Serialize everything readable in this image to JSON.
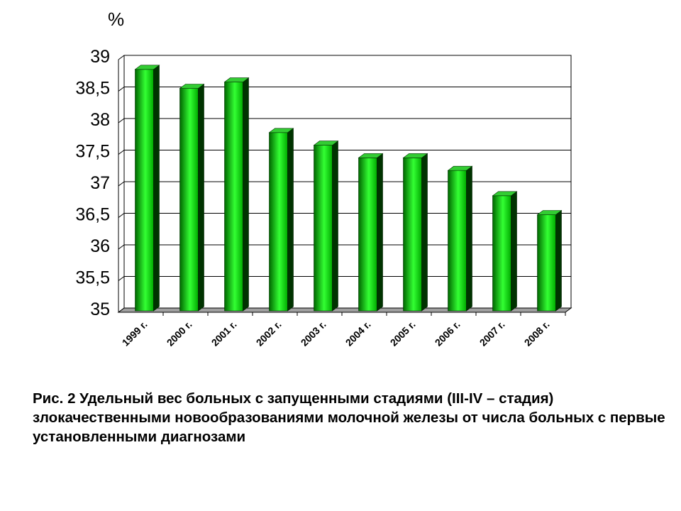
{
  "chart_data": {
    "type": "bar",
    "categories": [
      "1999 г.",
      "2000 г.",
      "2001 г.",
      "2002 г.",
      "2003 г.",
      "2004 г.",
      "2005 г.",
      "2006 г.",
      "2007 г.",
      "2008 г."
    ],
    "values": [
      38.8,
      38.5,
      38.6,
      37.8,
      37.6,
      37.4,
      37.4,
      37.2,
      36.8,
      36.5
    ],
    "ylabel": "%",
    "ylim": [
      35,
      39
    ],
    "yticks": [
      "35",
      "35,5",
      "36",
      "36,5",
      "37",
      "37,5",
      "38",
      "38,5",
      "39"
    ],
    "grid": true,
    "legend": "none",
    "colors": {
      "bar_light": "#33ff33",
      "bar_dark": "#006600",
      "bar_side": "#003300",
      "bar_top": "#33cc33"
    }
  },
  "caption": "Рис. 2 Удельный вес больных с запущенными стадиями (III-IV – стадия) злокачественными новообразованиями молочной железы от числа больных с первые установленными диагнозами"
}
